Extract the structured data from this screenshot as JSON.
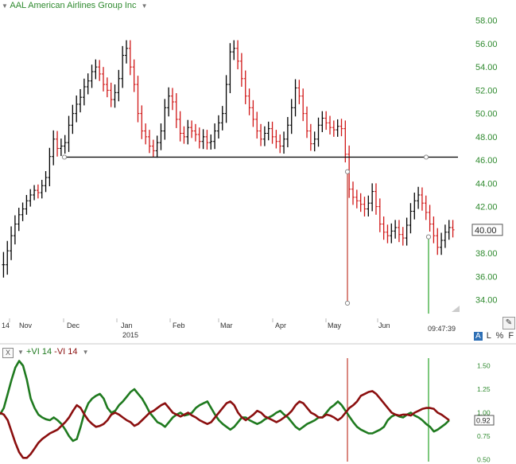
{
  "header": {
    "title": "AAL American Airlines Group Inc",
    "indicator_label_plus": "+VI 14",
    "indicator_label_minus": "-VI 14",
    "close_glyph": "X"
  },
  "toolbar": {
    "a_label": "A",
    "l_label": "L",
    "pct_label": "%",
    "f_label": "F",
    "time": "09:47:39"
  },
  "colors": {
    "up_bar": "#000000",
    "down_bar": "#d01717",
    "plus_vi": "#1f7a1f",
    "minus_vi": "#8b0f0f",
    "axis_text": "#2f8a2f"
  },
  "icons": {
    "collapse": "triangle-down-icon",
    "draw_tool": "pencil-icon",
    "chart_corner": "triangle-corner-icon"
  },
  "chart_data": [
    {
      "type": "ohlc",
      "ticker": "AAL",
      "y_axis": {
        "range": [
          32.6,
          58.8
        ],
        "ticks": [
          "58.00",
          "56.00",
          "54.00",
          "52.00",
          "50.00",
          "48.00",
          "46.00",
          "44.00",
          "42.00",
          "40.00",
          "38.00",
          "36.00",
          "34.00"
        ],
        "position": "right"
      },
      "last_price": "40.00",
      "x_axis_labels": [
        "14",
        "Nov",
        "Dec",
        "Jan",
        "2015",
        "Feb",
        "Mar",
        "Apr",
        "May",
        "Jun"
      ],
      "support_line": 46.25,
      "markers": [
        {
          "price_top": 45.0,
          "price_bottom": 33.7,
          "color": "red"
        },
        {
          "price_top": 39.4,
          "price_bottom": 32.8,
          "color": "green"
        }
      ],
      "closes": [
        37.0,
        38.2,
        39.5,
        40.5,
        41.3,
        41.8,
        42.5,
        43.0,
        43.4,
        43.2,
        43.8,
        44.5,
        46.3,
        47.8,
        47.0,
        47.2,
        47.5,
        49.0,
        50.0,
        50.8,
        51.4,
        52.3,
        52.8,
        53.6,
        54.0,
        53.4,
        52.5,
        52.0,
        51.2,
        51.8,
        53.0,
        55.0,
        55.6,
        54.0,
        52.5,
        50.0,
        48.5,
        48.0,
        47.2,
        46.8,
        47.5,
        48.5,
        50.5,
        51.5,
        51.0,
        49.5,
        48.3,
        48.0,
        48.8,
        48.5,
        48.2,
        47.6,
        48.0,
        47.5,
        47.6,
        48.5,
        49.2,
        50.0,
        52.5,
        55.3,
        55.6,
        54.5,
        53.0,
        51.5,
        50.5,
        49.5,
        48.5,
        47.8,
        48.3,
        48.7,
        48.0,
        47.6,
        47.2,
        47.8,
        49.0,
        50.5,
        52.2,
        51.5,
        50.0,
        48.5,
        47.4,
        47.8,
        49.0,
        49.6,
        49.2,
        48.8,
        48.6,
        48.9,
        48.7,
        46.5,
        43.5,
        42.8,
        42.5,
        42.2,
        41.8,
        42.3,
        43.3,
        42.0,
        40.5,
        39.8,
        39.5,
        39.9,
        40.2,
        39.6,
        39.3,
        40.4,
        41.6,
        42.5,
        43.0,
        42.3,
        41.5,
        40.5,
        39.5,
        38.5,
        39.1,
        39.8,
        40.2,
        40.0
      ],
      "spreads": [
        2.2,
        1.7,
        1.6,
        1.5,
        1.2,
        1.1,
        1.0,
        1.0,
        0.9,
        1.0,
        1.0,
        1.1,
        1.5,
        1.5,
        1.4,
        1.3,
        1.3,
        1.6,
        1.5,
        1.5,
        1.4,
        1.4,
        1.3,
        1.2,
        1.3,
        1.2,
        1.2,
        1.2,
        1.3,
        1.4,
        1.5,
        1.6,
        1.4,
        1.4,
        1.3,
        1.5,
        1.4,
        1.3,
        1.2,
        1.1,
        1.2,
        1.3,
        1.5,
        1.5,
        1.4,
        1.5,
        1.4,
        1.2,
        1.3,
        1.2,
        1.2,
        1.2,
        1.3,
        1.2,
        1.2,
        1.3,
        1.3,
        1.3,
        1.6,
        1.5,
        1.4,
        1.4,
        1.4,
        1.4,
        1.3,
        1.3,
        1.3,
        1.2,
        1.2,
        1.2,
        1.2,
        1.2,
        1.2,
        1.3,
        1.4,
        1.5,
        1.5,
        1.4,
        1.3,
        1.2,
        1.2,
        1.3,
        1.3,
        1.2,
        1.2,
        1.2,
        1.2,
        1.2,
        1.3,
        1.4,
        1.5,
        1.3,
        1.3,
        1.3,
        1.3,
        1.3,
        1.4,
        1.4,
        1.4,
        1.3,
        1.3,
        1.3,
        1.3,
        1.3,
        1.3,
        1.3,
        1.4,
        1.4,
        1.4,
        1.3,
        1.3,
        1.3,
        1.3,
        1.3,
        1.3,
        1.3,
        1.3,
        1.3
      ]
    },
    {
      "type": "line",
      "y_axis": {
        "range": [
          0.48,
          1.58
        ],
        "ticks": [
          "1.50",
          "1.25",
          "1.00",
          "0.75",
          "0.50"
        ],
        "position": "right"
      },
      "last_value": "0.92",
      "markers": [
        {
          "color": "red"
        },
        {
          "color": "green"
        }
      ],
      "series": [
        {
          "name": "+VI 14",
          "color": "#1f7a1f",
          "values": [
            0.98,
            1.05,
            1.2,
            1.35,
            1.48,
            1.55,
            1.5,
            1.35,
            1.15,
            1.05,
            0.98,
            0.95,
            0.93,
            0.92,
            0.95,
            0.92,
            0.88,
            0.82,
            0.75,
            0.7,
            0.72,
            0.85,
            1.0,
            1.1,
            1.15,
            1.18,
            1.2,
            1.15,
            1.05,
            1.0,
            1.02,
            1.08,
            1.12,
            1.17,
            1.22,
            1.25,
            1.2,
            1.15,
            1.08,
            1.0,
            0.95,
            0.9,
            0.88,
            0.85,
            0.9,
            0.95,
            0.98,
            1.0,
            0.97,
            0.98,
            1.0,
            1.05,
            1.08,
            1.1,
            1.12,
            1.05,
            0.98,
            0.92,
            0.88,
            0.85,
            0.82,
            0.85,
            0.9,
            0.95,
            0.95,
            0.92,
            0.9,
            0.88,
            0.9,
            0.93,
            0.95,
            0.97,
            1.0,
            1.02,
            0.98,
            0.95,
            0.9,
            0.85,
            0.82,
            0.85,
            0.88,
            0.9,
            0.92,
            0.95,
            0.95,
            1.0,
            1.05,
            1.08,
            1.12,
            1.08,
            1.02,
            0.96,
            0.9,
            0.85,
            0.82,
            0.8,
            0.78,
            0.78,
            0.8,
            0.82,
            0.85,
            0.92,
            0.96,
            0.98,
            0.96,
            0.95,
            0.98,
            1.0,
            0.97,
            0.95,
            0.92,
            0.88,
            0.85,
            0.8,
            0.82,
            0.85,
            0.88,
            0.92
          ]
        },
        {
          "name": "-VI 14",
          "color": "#8b0f0f",
          "values": [
            1.0,
            0.98,
            0.92,
            0.8,
            0.68,
            0.58,
            0.52,
            0.52,
            0.56,
            0.62,
            0.68,
            0.72,
            0.75,
            0.78,
            0.8,
            0.82,
            0.86,
            0.9,
            0.95,
            1.02,
            1.08,
            1.05,
            0.98,
            0.92,
            0.88,
            0.85,
            0.86,
            0.88,
            0.92,
            0.98,
            1.0,
            0.98,
            0.95,
            0.92,
            0.9,
            0.86,
            0.88,
            0.92,
            0.96,
            1.0,
            1.02,
            1.05,
            1.08,
            1.1,
            1.05,
            1.0,
            0.98,
            0.96,
            0.98,
            1.0,
            0.97,
            0.95,
            0.92,
            0.9,
            0.88,
            0.9,
            0.95,
            1.0,
            1.05,
            1.1,
            1.12,
            1.08,
            1.0,
            0.95,
            0.92,
            0.95,
            0.98,
            1.02,
            1.0,
            0.96,
            0.94,
            0.92,
            0.9,
            0.92,
            0.95,
            0.98,
            1.02,
            1.08,
            1.12,
            1.1,
            1.05,
            1.0,
            0.98,
            0.95,
            0.95,
            0.98,
            0.97,
            0.95,
            0.92,
            0.95,
            1.0,
            1.05,
            1.08,
            1.12,
            1.18,
            1.2,
            1.22,
            1.23,
            1.2,
            1.15,
            1.1,
            1.05,
            1.0,
            0.98,
            0.97,
            0.98,
            0.98,
            0.97,
            1.0,
            1.02,
            1.04,
            1.05,
            1.05,
            1.04,
            1.0,
            0.98,
            0.95,
            0.92
          ]
        }
      ]
    }
  ]
}
